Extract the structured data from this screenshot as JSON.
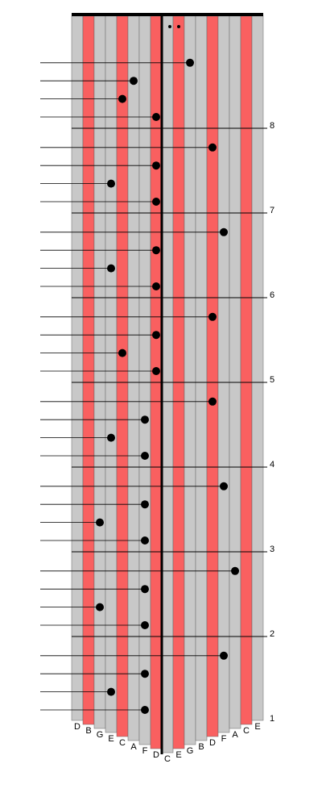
{
  "tines": [
    {
      "label": "D",
      "color": "#c8c8c8"
    },
    {
      "label": "B",
      "color": "#f96060"
    },
    {
      "label": "G",
      "color": "#c8c8c8"
    },
    {
      "label": "E",
      "color": "#c8c8c8"
    },
    {
      "label": "C",
      "color": "#f96060"
    },
    {
      "label": "A",
      "color": "#c8c8c8"
    },
    {
      "label": "F",
      "color": "#c8c8c8"
    },
    {
      "label": "D",
      "color": "#f96060"
    },
    {
      "label": "C",
      "color": "#c8c8c8"
    },
    {
      "label": "E",
      "color": "#f96060"
    },
    {
      "label": "G",
      "color": "#c8c8c8"
    },
    {
      "label": "B",
      "color": "#c8c8c8"
    },
    {
      "label": "D",
      "color": "#f96060"
    },
    {
      "label": "F",
      "color": "#c8c8c8"
    },
    {
      "label": "A",
      "color": "#c8c8c8"
    },
    {
      "label": "C",
      "color": "#f96060"
    },
    {
      "label": "E",
      "color": "#c8c8c8"
    }
  ],
  "measures": [
    {
      "number": 1,
      "notes": [
        6,
        3,
        6,
        13
      ]
    },
    {
      "number": 2,
      "notes": [
        6,
        2,
        6,
        14
      ]
    },
    {
      "number": 3,
      "notes": [
        6,
        2,
        6,
        13
      ]
    },
    {
      "number": 4,
      "notes": [
        6,
        3,
        6,
        12
      ]
    },
    {
      "number": 5,
      "notes": [
        7,
        4,
        7,
        12
      ]
    },
    {
      "number": 6,
      "notes": [
        7,
        3,
        7,
        13
      ]
    },
    {
      "number": 7,
      "notes": [
        7,
        3,
        7,
        12
      ]
    },
    {
      "number": 8,
      "notes": [
        7,
        4,
        5,
        10
      ]
    }
  ]
}
